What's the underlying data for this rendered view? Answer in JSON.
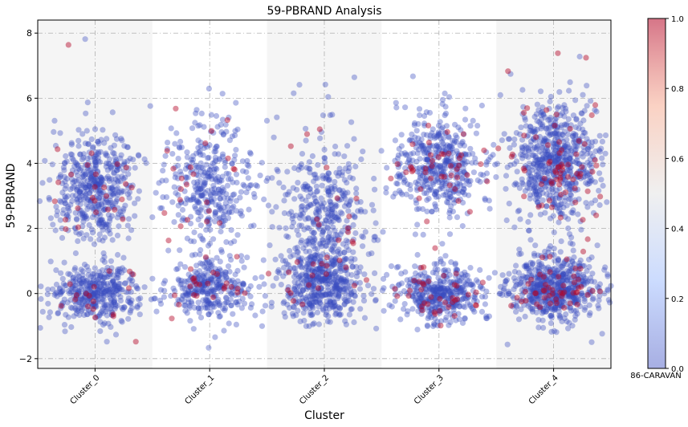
{
  "chart_data": {
    "type": "scatter",
    "title": "59-PBRAND Analysis",
    "xlabel": "Cluster",
    "ylabel": "59-PBRAND",
    "categories": [
      "Cluster_0",
      "Cluster_1",
      "Cluster_2",
      "Cluster_3",
      "Cluster_4"
    ],
    "ylim": [
      -2.3,
      8.4
    ],
    "yticks": [
      -2,
      0,
      2,
      4,
      6,
      8
    ],
    "grid": true,
    "colorbar": {
      "label": "86-CARAVAN",
      "range": [
        0.0,
        1.0
      ],
      "ticks": [
        "0.0",
        "0.2",
        "0.4",
        "0.6",
        "0.8",
        "1.0"
      ],
      "colormap": "coolwarm"
    },
    "point_color_low": "#3b4cc0",
    "point_color_high": "#b40426",
    "band_color": "#f5f5f5",
    "clusters": [
      {
        "name": "Cluster_0",
        "n_points": 900,
        "modes": [
          {
            "center": 0.0,
            "spread": 0.45,
            "weight": 0.45
          },
          {
            "center": 3.2,
            "spread": 0.85,
            "weight": 0.55
          }
        ],
        "y_min": -1.7,
        "y_max": 7.9,
        "share_caravan_1": 0.05
      },
      {
        "name": "Cluster_1",
        "n_points": 700,
        "modes": [
          {
            "center": 0.1,
            "spread": 0.45,
            "weight": 0.45
          },
          {
            "center": 3.3,
            "spread": 1.0,
            "weight": 0.55
          }
        ],
        "y_min": -1.8,
        "y_max": 7.0,
        "share_caravan_1": 0.06
      },
      {
        "name": "Cluster_2",
        "n_points": 850,
        "modes": [
          {
            "center": 0.3,
            "spread": 0.55,
            "weight": 0.55
          },
          {
            "center": 2.5,
            "spread": 1.0,
            "weight": 0.45
          }
        ],
        "y_min": -1.0,
        "y_max": 7.1,
        "share_caravan_1": 0.04
      },
      {
        "name": "Cluster_3",
        "n_points": 900,
        "modes": [
          {
            "center": 0.0,
            "spread": 0.45,
            "weight": 0.45
          },
          {
            "center": 3.9,
            "spread": 0.8,
            "weight": 0.55
          }
        ],
        "y_min": -1.2,
        "y_max": 6.8,
        "share_caravan_1": 0.08
      },
      {
        "name": "Cluster_4",
        "n_points": 1300,
        "modes": [
          {
            "center": 0.2,
            "spread": 0.5,
            "weight": 0.45
          },
          {
            "center": 4.0,
            "spread": 0.9,
            "weight": 0.55
          }
        ],
        "y_min": -1.6,
        "y_max": 8.0,
        "share_caravan_1": 0.09
      }
    ]
  }
}
